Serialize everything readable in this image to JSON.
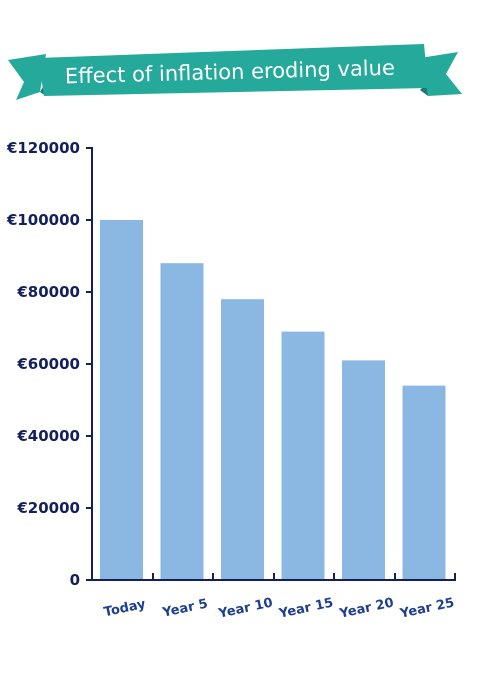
{
  "colors": {
    "banner": "#25a99b",
    "banner_shadow": "#187a70",
    "bar": "#8ab8e3",
    "axis": "#15205a",
    "tick_text": "#15205a",
    "category_text": "#1e3f8f"
  },
  "chart_data": {
    "type": "bar",
    "title": "Effect of inflation eroding value",
    "xlabel": "",
    "ylabel": "",
    "categories": [
      "Today",
      "Year 5",
      "Year 10",
      "Year 15",
      "Year 20",
      "Year 25"
    ],
    "values": [
      100000,
      88000,
      78000,
      69000,
      61000,
      54000
    ],
    "ylim": [
      0,
      120000
    ],
    "y_ticks": [
      0,
      20000,
      40000,
      60000,
      80000,
      100000,
      120000
    ],
    "y_tick_labels": [
      "0",
      "€20000",
      "€40000",
      "€60000",
      "€80000",
      "€100000",
      "€120000"
    ],
    "grid": false,
    "legend": "none"
  }
}
